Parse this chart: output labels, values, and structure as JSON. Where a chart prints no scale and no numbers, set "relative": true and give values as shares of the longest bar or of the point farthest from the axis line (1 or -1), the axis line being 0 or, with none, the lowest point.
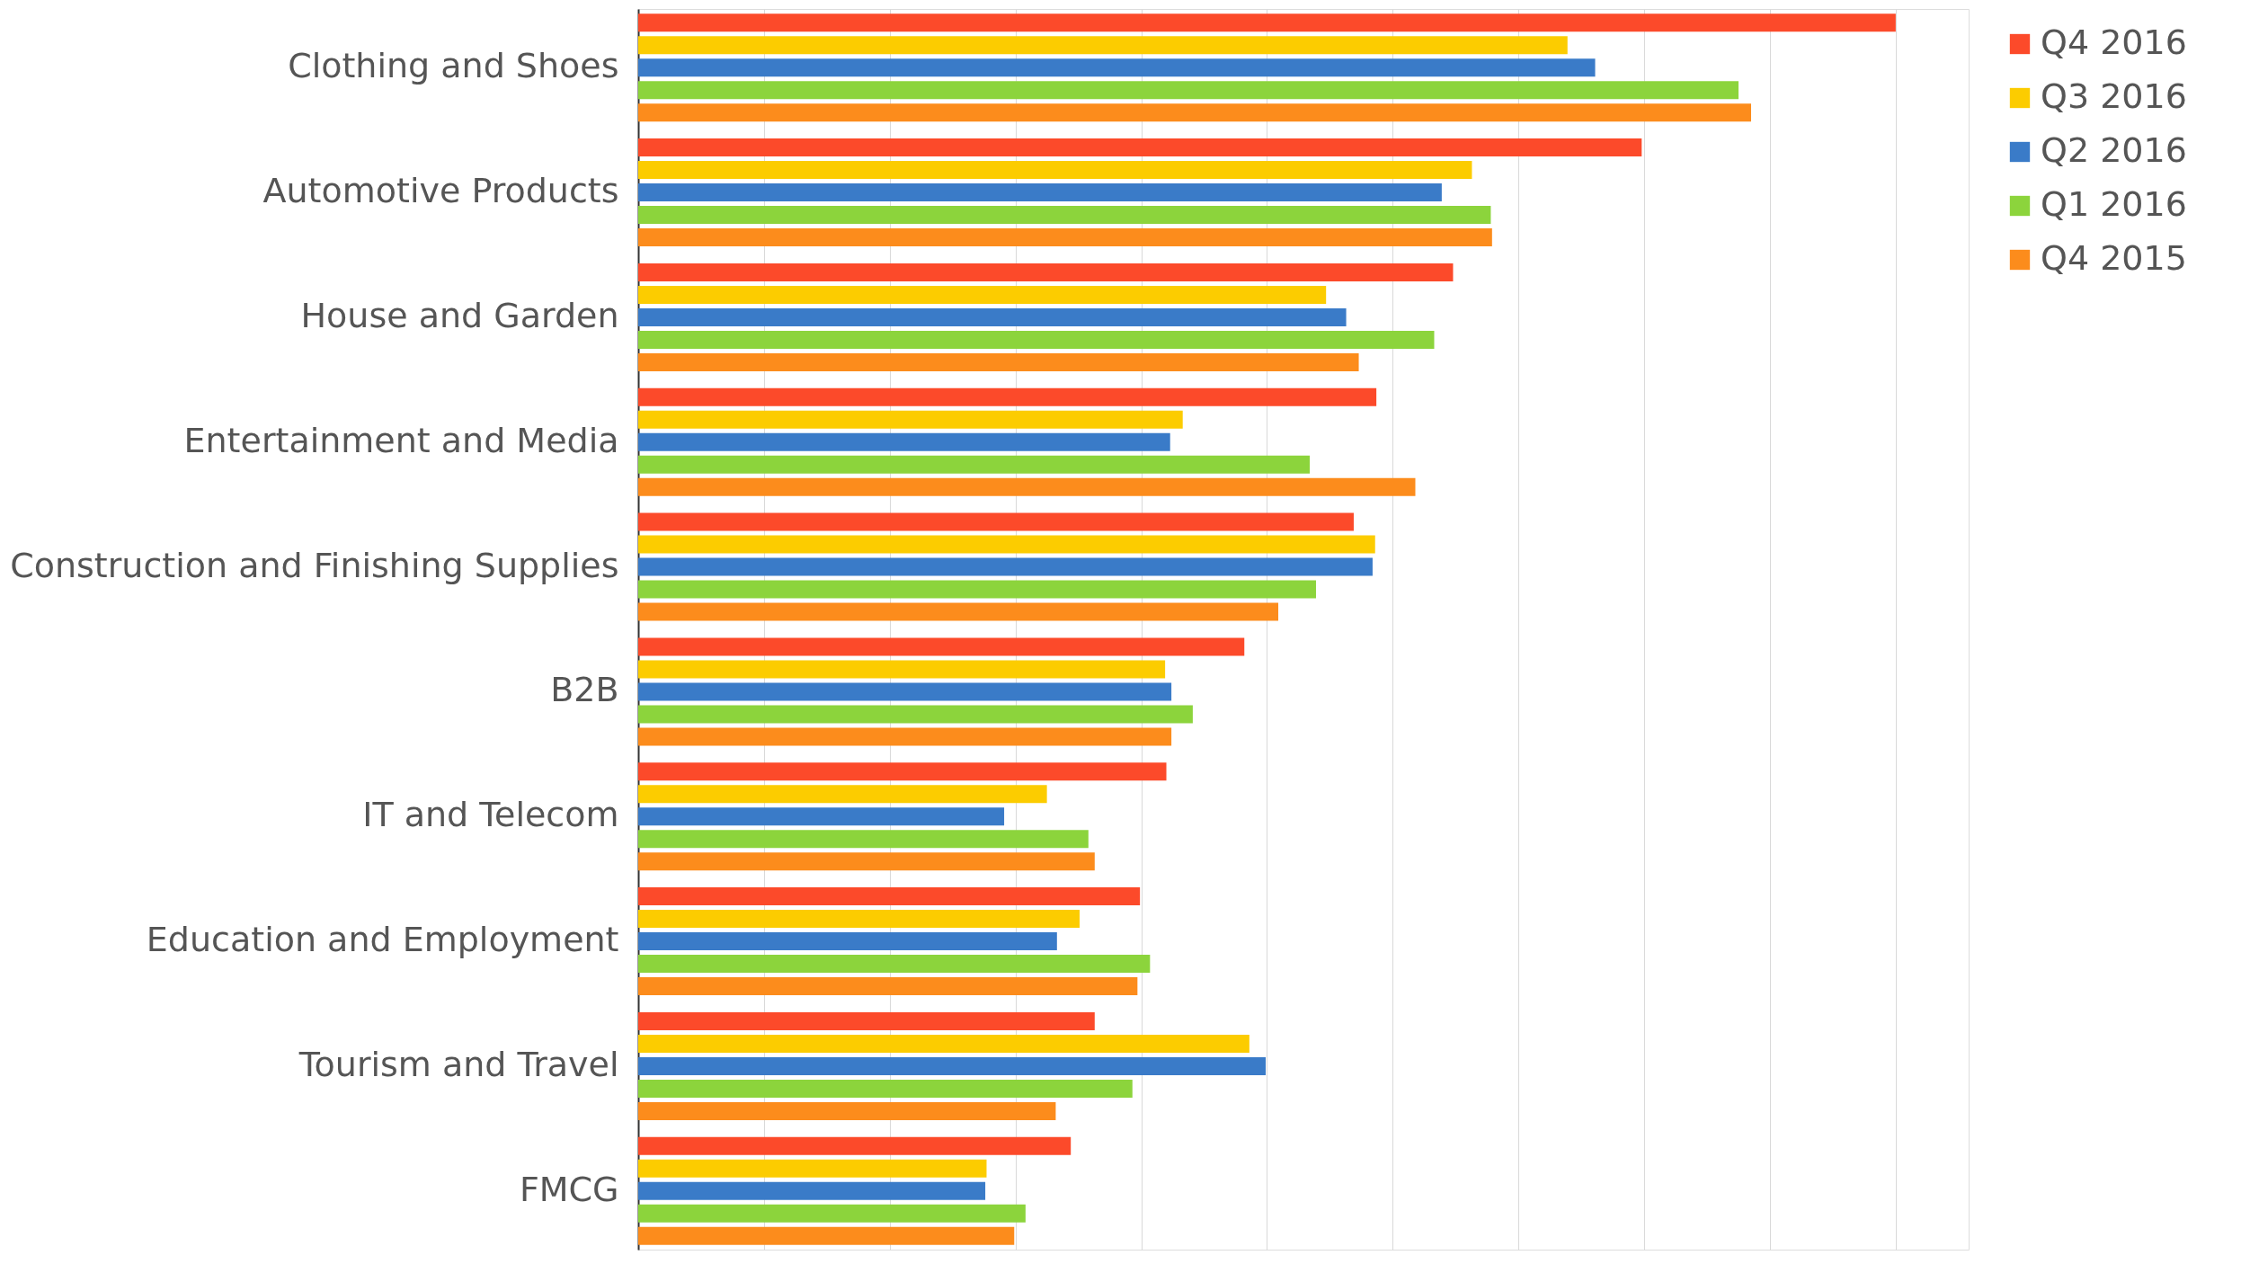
{
  "chart_data": {
    "type": "bar",
    "orientation": "horizontal",
    "relative": true,
    "grid": "x",
    "legend": "right",
    "categories": [
      "Clothing and Shoes",
      "Automotive Products",
      "House and Garden",
      "Entertainment and Media",
      "Construction and Finishing Supplies",
      "B2B",
      "IT and Telecom",
      "Education and Employment",
      "Tourism and Travel",
      "FMCG"
    ],
    "series": [
      {
        "name": "Q4 2016",
        "color": "#fc4a2a",
        "values": [
          1,
          0.798,
          0.648,
          0.587,
          0.569,
          0.482,
          0.42,
          0.399,
          0.363,
          0.344
        ]
      },
      {
        "name": "Q3 2016",
        "color": "#fccc00",
        "values": [
          0.739,
          0.663,
          0.547,
          0.433,
          0.586,
          0.419,
          0.325,
          0.351,
          0.486,
          0.277
        ]
      },
      {
        "name": "Q2 2016",
        "color": "#3a7bc8",
        "values": [
          0.761,
          0.639,
          0.563,
          0.423,
          0.584,
          0.424,
          0.291,
          0.333,
          0.499,
          0.276
        ]
      },
      {
        "name": "Q1 2016",
        "color": "#8cd43c",
        "values": [
          0.875,
          0.678,
          0.633,
          0.534,
          0.539,
          0.441,
          0.358,
          0.407,
          0.393,
          0.308
        ]
      },
      {
        "name": "Q4 2015",
        "color": "#fc8c1c",
        "values": [
          0.885,
          0.679,
          0.573,
          0.618,
          0.509,
          0.424,
          0.363,
          0.397,
          0.332,
          0.299
        ]
      }
    ]
  }
}
